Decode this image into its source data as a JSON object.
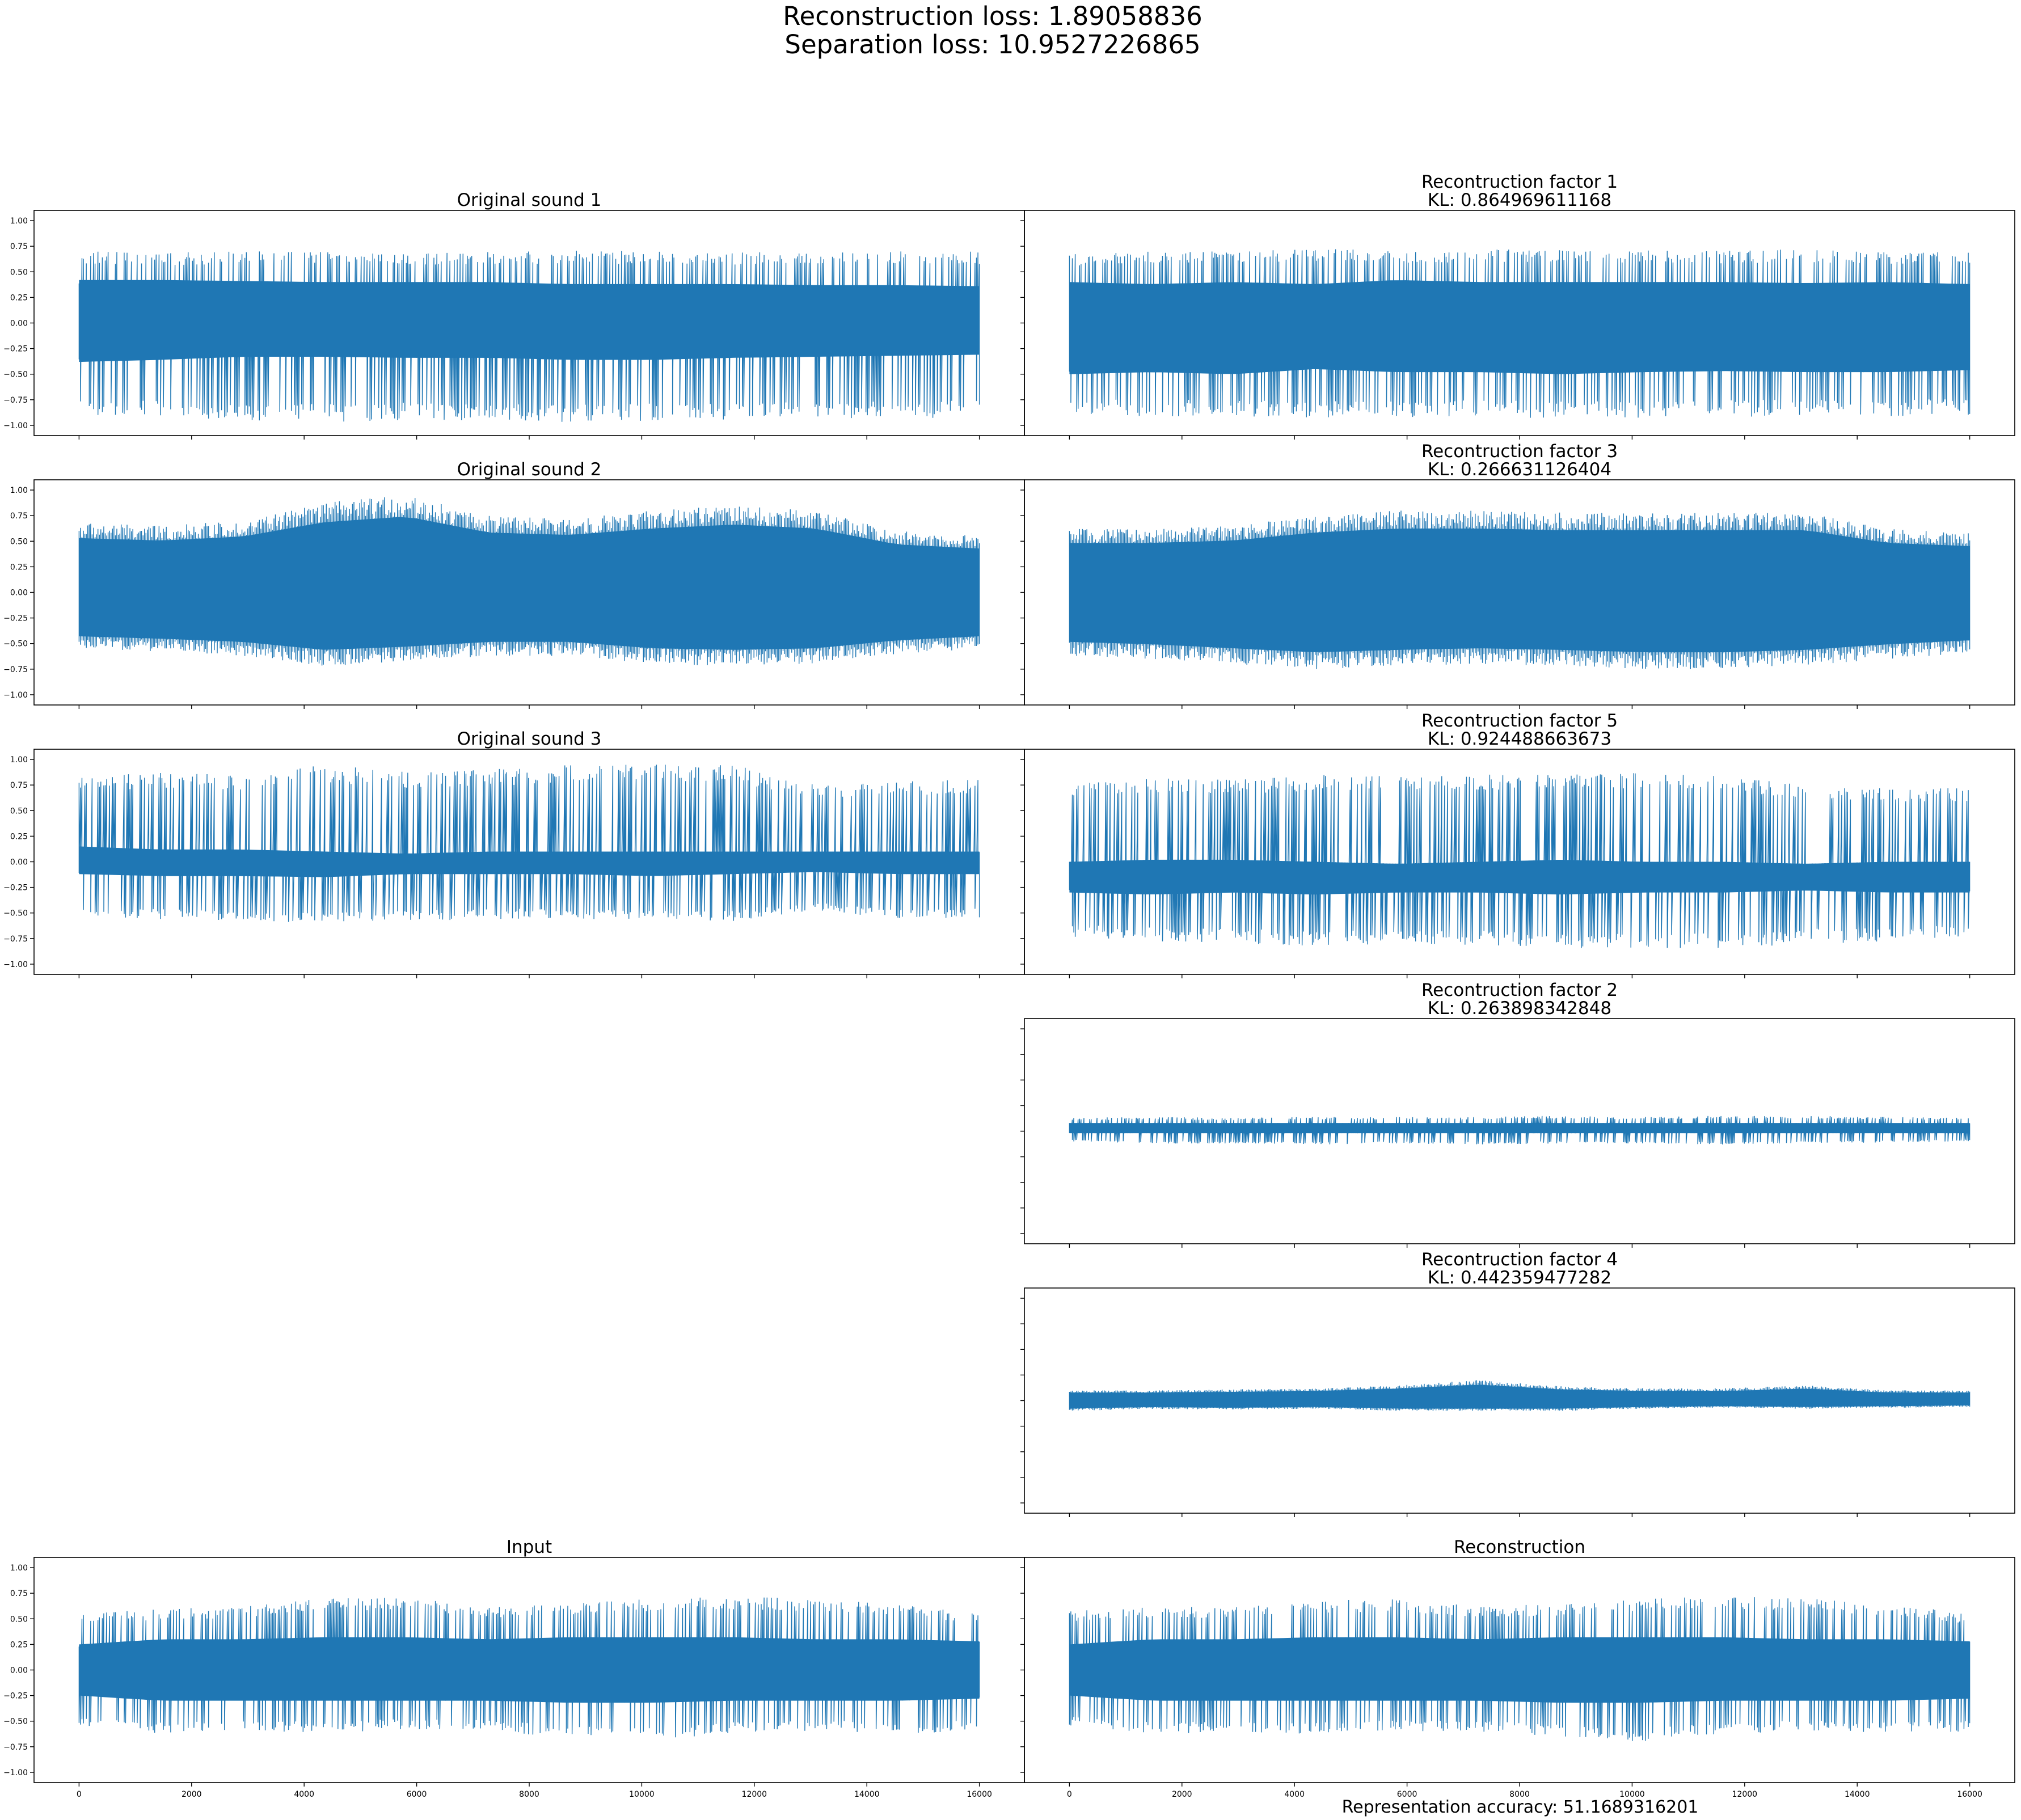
{
  "header": {
    "line1": "Reconstruction loss: 1.89058836",
    "line2": "Separation loss: 10.9527226865"
  },
  "footer": {
    "accuracy": "Representation accuracy: 51.1689316201"
  },
  "style": {
    "line_color": "#1f77b4"
  },
  "chart_data": [
    {
      "id": "orig1",
      "type": "line",
      "title": "Original sound 1",
      "subtitle": "",
      "xlim": [
        -800,
        16800
      ],
      "ylim": [
        -1.1,
        1.1
      ],
      "x_range": [
        0,
        16000
      ],
      "envelope": {
        "upper": [
          0.7,
          0.69,
          0.7,
          0.7,
          0.69,
          0.7,
          0.71,
          0.7,
          0.69,
          0.7,
          0.7,
          0.7
        ],
        "lower": [
          -0.9,
          -0.92,
          -0.95,
          -0.97,
          -0.95,
          -0.96,
          -0.97,
          -0.96,
          -0.95,
          -0.93,
          -0.94,
          -0.92
        ],
        "core_upper": [
          0.42,
          0.42,
          0.41,
          0.4,
          0.4,
          0.4,
          0.38,
          0.38,
          0.38,
          0.37,
          0.37,
          0.36
        ],
        "core_lower": [
          -0.38,
          -0.36,
          -0.33,
          -0.33,
          -0.34,
          -0.34,
          -0.36,
          -0.36,
          -0.34,
          -0.33,
          -0.32,
          -0.31
        ]
      }
    },
    {
      "id": "rec1",
      "type": "line",
      "title": "Recontruction factor 1",
      "subtitle": "KL: 0.864969611168",
      "xlim": [
        -800,
        16800
      ],
      "ylim": [
        -1.1,
        1.1
      ],
      "x_range": [
        0,
        16000
      ],
      "envelope": {
        "upper": [
          0.68,
          0.72,
          0.7,
          0.73,
          0.71,
          0.72,
          0.72,
          0.72,
          0.71,
          0.72,
          0.7,
          0.7
        ],
        "lower": [
          -0.9,
          -0.91,
          -0.92,
          -0.93,
          -0.92,
          -0.92,
          -0.93,
          -0.93,
          -0.92,
          -0.91,
          -0.92,
          -0.9
        ],
        "core_upper": [
          0.4,
          0.38,
          0.4,
          0.38,
          0.42,
          0.4,
          0.4,
          0.4,
          0.4,
          0.39,
          0.4,
          0.38
        ],
        "core_lower": [
          -0.5,
          -0.48,
          -0.5,
          -0.45,
          -0.48,
          -0.48,
          -0.5,
          -0.48,
          -0.47,
          -0.48,
          -0.48,
          -0.46
        ]
      }
    },
    {
      "id": "orig2",
      "type": "line",
      "title": "Original sound 2",
      "subtitle": "",
      "xlim": [
        -800,
        16800
      ],
      "ylim": [
        -1.1,
        1.1
      ],
      "x_range": [
        0,
        16000
      ],
      "envelope": {
        "upper": [
          0.68,
          0.65,
          0.7,
          0.88,
          0.95,
          0.75,
          0.72,
          0.8,
          0.85,
          0.8,
          0.6,
          0.55
        ],
        "lower": [
          -0.55,
          -0.58,
          -0.62,
          -0.72,
          -0.68,
          -0.62,
          -0.62,
          -0.7,
          -0.72,
          -0.7,
          -0.6,
          -0.55
        ]
      }
    },
    {
      "id": "rec3",
      "type": "line",
      "title": "Recontruction factor 3",
      "subtitle": "KL: 0.266631126404",
      "xlim": [
        -800,
        16800
      ],
      "ylim": [
        -1.1,
        1.1
      ],
      "x_range": [
        0,
        16000
      ],
      "envelope": {
        "upper": [
          0.62,
          0.62,
          0.65,
          0.75,
          0.8,
          0.8,
          0.78,
          0.78,
          0.78,
          0.78,
          0.62,
          0.58
        ],
        "lower": [
          -0.62,
          -0.65,
          -0.7,
          -0.75,
          -0.72,
          -0.7,
          -0.72,
          -0.75,
          -0.75,
          -0.72,
          -0.65,
          -0.6
        ]
      }
    },
    {
      "id": "orig3",
      "type": "line",
      "title": "Original sound 3",
      "subtitle": "",
      "xlim": [
        -800,
        16800
      ],
      "ylim": [
        -1.1,
        1.1
      ],
      "x_range": [
        0,
        16000
      ],
      "envelope": {
        "upper": [
          0.82,
          0.88,
          0.85,
          0.95,
          0.88,
          0.9,
          0.95,
          0.96,
          0.95,
          0.75,
          0.78,
          0.82
        ],
        "lower": [
          -0.55,
          -0.56,
          -0.58,
          -0.6,
          -0.58,
          -0.56,
          -0.56,
          -0.58,
          -0.58,
          -0.48,
          -0.55,
          -0.55
        ],
        "core_upper": [
          0.15,
          0.12,
          0.12,
          0.1,
          0.08,
          0.1,
          0.1,
          0.1,
          0.1,
          0.1,
          0.1,
          0.1
        ],
        "core_lower": [
          -0.12,
          -0.14,
          -0.14,
          -0.15,
          -0.12,
          -0.12,
          -0.12,
          -0.14,
          -0.12,
          -0.1,
          -0.12,
          -0.12
        ]
      }
    },
    {
      "id": "rec5",
      "type": "line",
      "title": "Recontruction factor 5",
      "subtitle": "KL: 0.924488663673",
      "xlim": [
        -800,
        16800
      ],
      "ylim": [
        -1.1,
        1.1
      ],
      "x_range": [
        0,
        16000
      ],
      "envelope": {
        "upper": [
          0.78,
          0.82,
          0.8,
          0.85,
          0.85,
          0.85,
          0.88,
          0.87,
          0.85,
          0.75,
          0.72,
          0.72
        ],
        "lower": [
          -0.75,
          -0.78,
          -0.8,
          -0.82,
          -0.82,
          -0.82,
          -0.85,
          -0.85,
          -0.85,
          -0.8,
          -0.78,
          -0.75
        ],
        "core_upper": [
          0.0,
          0.02,
          0.02,
          0.0,
          -0.02,
          0.0,
          0.02,
          0.0,
          0.0,
          -0.02,
          0.0,
          0.0
        ],
        "core_lower": [
          -0.3,
          -0.32,
          -0.3,
          -0.32,
          -0.3,
          -0.3,
          -0.32,
          -0.3,
          -0.3,
          -0.28,
          -0.3,
          -0.3
        ]
      }
    },
    {
      "id": "rec2",
      "type": "line",
      "title": "Recontruction factor 2",
      "subtitle": "KL: 0.263898342848",
      "xlim": [
        -800,
        16800
      ],
      "ylim": [
        -1.1,
        1.1
      ],
      "x_range": [
        0,
        16000
      ],
      "envelope": {
        "upper": [
          0.13,
          0.14,
          0.13,
          0.14,
          0.14,
          0.14,
          0.15,
          0.14,
          0.15,
          0.15,
          0.14,
          0.13
        ],
        "lower": [
          -0.1,
          -0.12,
          -0.12,
          -0.13,
          -0.12,
          -0.13,
          -0.12,
          -0.12,
          -0.13,
          -0.12,
          -0.11,
          -0.1
        ],
        "core_upper": [
          0.08,
          0.08,
          0.08,
          0.08,
          0.08,
          0.08,
          0.08,
          0.08,
          0.08,
          0.08,
          0.08,
          0.08
        ],
        "core_lower": [
          -0.02,
          -0.02,
          -0.02,
          -0.02,
          -0.02,
          -0.02,
          -0.02,
          -0.02,
          -0.02,
          -0.02,
          -0.02,
          -0.02
        ]
      }
    },
    {
      "id": "rec4",
      "type": "line",
      "title": "Recontruction factor 4",
      "subtitle": "KL: 0.442359477282",
      "xlim": [
        -800,
        16800
      ],
      "ylim": [
        -1.1,
        1.1
      ],
      "x_range": [
        0,
        16000
      ],
      "envelope": {
        "upper": [
          0.1,
          0.1,
          0.11,
          0.12,
          0.15,
          0.2,
          0.14,
          0.12,
          0.12,
          0.15,
          0.1,
          0.1
        ],
        "lower": [
          -0.1,
          -0.08,
          -0.09,
          -0.08,
          -0.1,
          -0.1,
          -0.1,
          -0.08,
          -0.07,
          -0.08,
          -0.07,
          -0.06
        ]
      }
    },
    {
      "id": "input",
      "type": "line",
      "title": "Input",
      "subtitle": "",
      "xlim": [
        -800,
        16800
      ],
      "ylim": [
        -1.1,
        1.1
      ],
      "x_range": [
        0,
        16000
      ],
      "envelope": {
        "upper": [
          0.55,
          0.6,
          0.62,
          0.7,
          0.72,
          0.62,
          0.65,
          0.7,
          0.72,
          0.7,
          0.65,
          0.55
        ],
        "lower": [
          -0.55,
          -0.62,
          -0.6,
          -0.62,
          -0.58,
          -0.6,
          -0.66,
          -0.68,
          -0.62,
          -0.6,
          -0.62,
          -0.6
        ],
        "core_upper": [
          0.25,
          0.3,
          0.3,
          0.32,
          0.32,
          0.3,
          0.32,
          0.32,
          0.32,
          0.3,
          0.3,
          0.28
        ],
        "core_lower": [
          -0.25,
          -0.3,
          -0.3,
          -0.3,
          -0.3,
          -0.3,
          -0.32,
          -0.32,
          -0.3,
          -0.3,
          -0.3,
          -0.28
        ]
      }
    },
    {
      "id": "recon",
      "type": "line",
      "title": "Reconstruction",
      "subtitle": "",
      "xlim": [
        -800,
        16800
      ],
      "ylim": [
        -1.1,
        1.1
      ],
      "x_range": [
        0,
        16000
      ],
      "envelope": {
        "upper": [
          0.58,
          0.62,
          0.62,
          0.68,
          0.7,
          0.62,
          0.65,
          0.7,
          0.72,
          0.7,
          0.65,
          0.55
        ],
        "lower": [
          -0.55,
          -0.62,
          -0.62,
          -0.62,
          -0.6,
          -0.6,
          -0.65,
          -0.7,
          -0.62,
          -0.6,
          -0.62,
          -0.6
        ],
        "core_upper": [
          0.25,
          0.3,
          0.3,
          0.32,
          0.32,
          0.3,
          0.32,
          0.32,
          0.32,
          0.3,
          0.3,
          0.28
        ],
        "core_lower": [
          -0.25,
          -0.3,
          -0.3,
          -0.3,
          -0.3,
          -0.3,
          -0.32,
          -0.32,
          -0.3,
          -0.3,
          -0.3,
          -0.28
        ]
      }
    }
  ],
  "axes": {
    "y_ticks": [
      -1.0,
      -0.75,
      -0.5,
      -0.25,
      0.0,
      0.25,
      0.5,
      0.75,
      1.0
    ],
    "y_tick_labels": [
      "−1.00",
      "−0.75",
      "−0.50",
      "−0.25",
      "0.00",
      "0.25",
      "0.50",
      "0.75",
      "1.00"
    ],
    "x_ticks": [
      0,
      2000,
      4000,
      6000,
      8000,
      10000,
      12000,
      14000,
      16000
    ],
    "x_tick_labels": [
      "0",
      "2000",
      "4000",
      "6000",
      "8000",
      "10000",
      "12000",
      "14000",
      "16000"
    ]
  }
}
